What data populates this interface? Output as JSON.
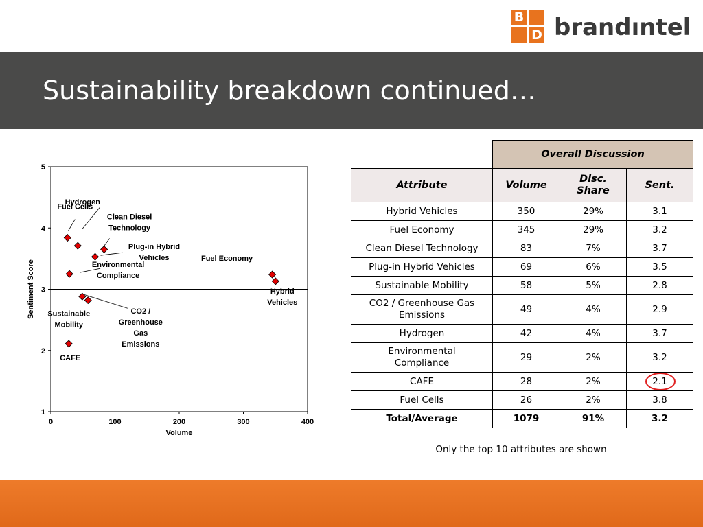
{
  "brand": {
    "name": "brandıntel",
    "logo_letters": [
      "B",
      "",
      "",
      "D"
    ]
  },
  "slide": {
    "title": "Sustainability breakdown continued…"
  },
  "table": {
    "group_header": "Overall Discussion",
    "columns": [
      "Attribute",
      "Volume",
      "Disc.\nShare",
      "Sent."
    ],
    "rows": [
      [
        "Hybrid Vehicles",
        "350",
        "29%",
        "3.1"
      ],
      [
        "Fuel Economy",
        "345",
        "29%",
        "3.2"
      ],
      [
        "Clean Diesel Technology",
        "83",
        "7%",
        "3.7"
      ],
      [
        "Plug-in Hybrid Vehicles",
        "69",
        "6%",
        "3.5"
      ],
      [
        "Sustainable Mobility",
        "58",
        "5%",
        "2.8"
      ],
      [
        "CO2 / Greenhouse Gas Emissions",
        "49",
        "4%",
        "2.9"
      ],
      [
        "Hydrogen",
        "42",
        "4%",
        "3.7"
      ],
      [
        "Environmental Compliance",
        "29",
        "2%",
        "3.2"
      ],
      [
        "CAFE",
        "28",
        "2%",
        "2.1"
      ],
      [
        "Fuel Cells",
        "26",
        "2%",
        "3.8"
      ]
    ],
    "total": [
      "Total/Average",
      "1079",
      "91%",
      "3.2"
    ],
    "highlight_color": "#e02020"
  },
  "note": "Only the top 10 attributes are shown",
  "colors": {
    "band": "#4a4a49",
    "accent": "#e8731e",
    "marker": "#e00000"
  },
  "chart_data": {
    "type": "scatter",
    "title": "",
    "xlabel": "Volume",
    "ylabel": "Sentiment Score",
    "xlim": [
      0,
      400
    ],
    "ylim": [
      1,
      5
    ],
    "xticks": [
      "0",
      "100",
      "200",
      "300",
      "400"
    ],
    "yticks": [
      "1",
      "2",
      "3",
      "4",
      "5"
    ],
    "reference_line_y": 3,
    "points": [
      {
        "label": "Hybrid Vehicles",
        "x": 350,
        "y": 3.13,
        "text": [
          "Hybrid",
          "Vehicles"
        ]
      },
      {
        "label": "Fuel Economy",
        "x": 345,
        "y": 3.24,
        "text": [
          "Fuel Economy"
        ]
      },
      {
        "label": "Clean Diesel Technology",
        "x": 83,
        "y": 3.65,
        "text": [
          "Clean Diesel",
          "Technology"
        ]
      },
      {
        "label": "Plug-in Hybrid Vehicles",
        "x": 69,
        "y": 3.53,
        "text": [
          "Plug-in Hybrid",
          "Vehicles"
        ]
      },
      {
        "label": "Sustainable Mobility",
        "x": 58,
        "y": 2.82,
        "text": [
          "Sustainable",
          "Mobility"
        ]
      },
      {
        "label": "CO2 / Greenhouse Gas Emissions",
        "x": 49,
        "y": 2.88,
        "text": [
          "CO2 /",
          "Greenhouse",
          "Gas",
          "Emissions"
        ]
      },
      {
        "label": "Hydrogen",
        "x": 42,
        "y": 3.71,
        "text": [
          "Hydrogen"
        ]
      },
      {
        "label": "Environmental Compliance",
        "x": 29,
        "y": 3.25,
        "text": [
          "Environmental",
          "Compliance"
        ]
      },
      {
        "label": "CAFE",
        "x": 28,
        "y": 2.11,
        "text": [
          "CAFE"
        ]
      },
      {
        "label": "Fuel Cells",
        "x": 26,
        "y": 3.84,
        "text": [
          "Fuel Cells"
        ]
      }
    ]
  }
}
